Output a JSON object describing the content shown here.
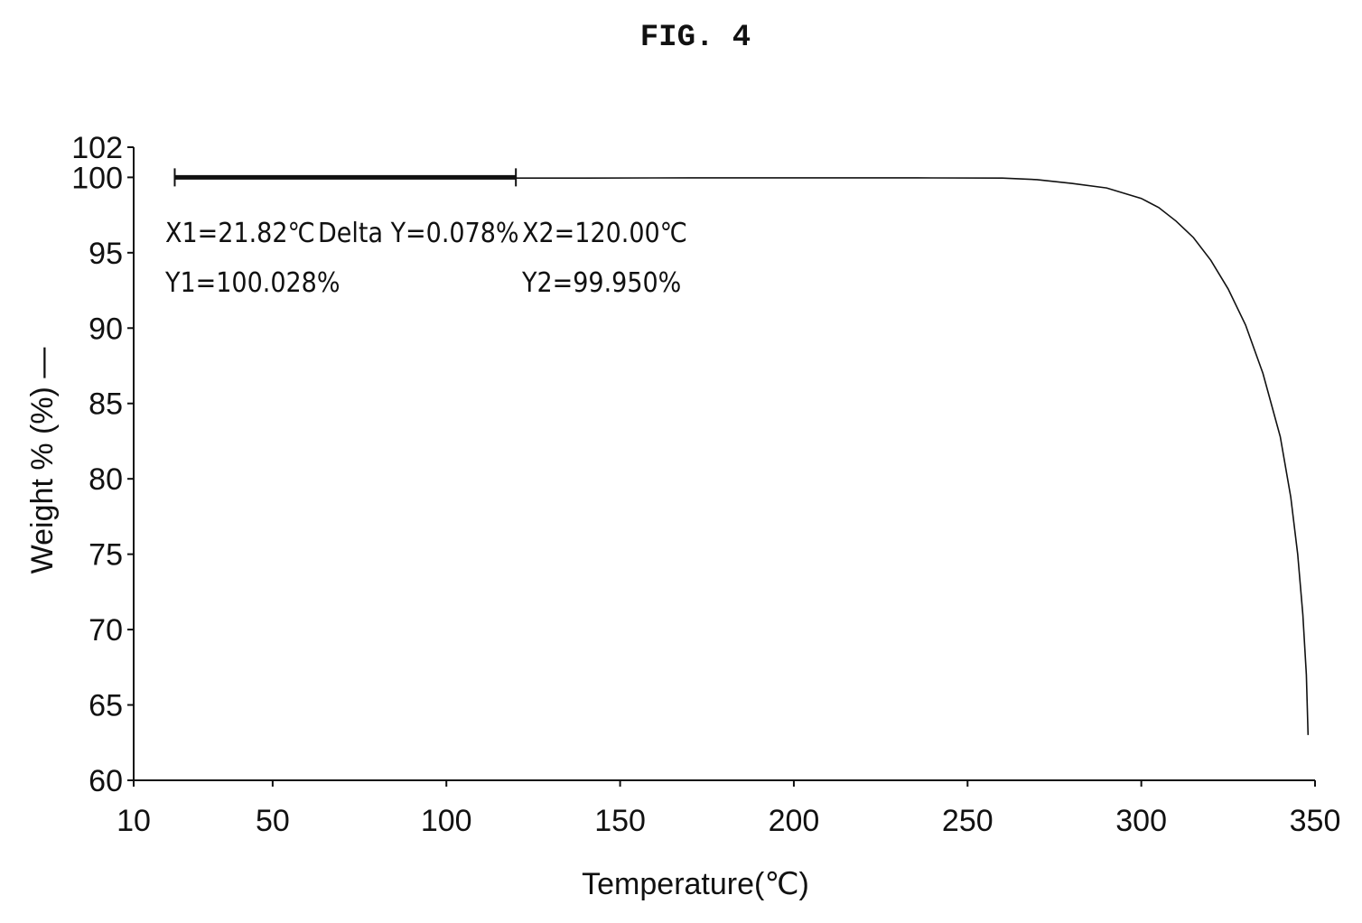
{
  "figure_label": "FIG. 4",
  "chart_data": {
    "type": "line",
    "title": "",
    "xlabel": "Temperature(℃)",
    "ylabel": "Weight % (%) —",
    "xlim": [
      10,
      350
    ],
    "ylim": [
      60,
      102
    ],
    "x_ticks": [
      10,
      50,
      100,
      150,
      200,
      250,
      300,
      350
    ],
    "y_ticks": [
      60,
      65,
      70,
      75,
      80,
      85,
      90,
      95,
      100,
      102
    ],
    "grid": false,
    "series": [
      {
        "name": "",
        "color": "#111111",
        "x": [
          21.82,
          40,
          60,
          80,
          100,
          120,
          140,
          160,
          180,
          200,
          220,
          240,
          260,
          270,
          280,
          290,
          300,
          305,
          310,
          315,
          320,
          325,
          330,
          335,
          340,
          343,
          345,
          346.5,
          347.5,
          348
        ],
        "y": [
          100.03,
          100.03,
          100.02,
          100.01,
          99.99,
          99.95,
          99.95,
          99.96,
          99.97,
          99.97,
          99.97,
          99.96,
          99.95,
          99.85,
          99.6,
          99.3,
          98.6,
          98.0,
          97.1,
          96.0,
          94.5,
          92.6,
          90.2,
          87.0,
          82.8,
          78.8,
          75.0,
          71.0,
          67.0,
          63.0
        ]
      }
    ],
    "measurement": {
      "x1": 21.82,
      "x2": 120.0,
      "y_level": 100.0,
      "labels": {
        "x1": "X1=21.82℃",
        "delta": "Delta Y=0.078%",
        "x2": "X2=120.00℃",
        "y1": "Y1=100.028%",
        "y2": "Y2=99.950%"
      }
    }
  }
}
